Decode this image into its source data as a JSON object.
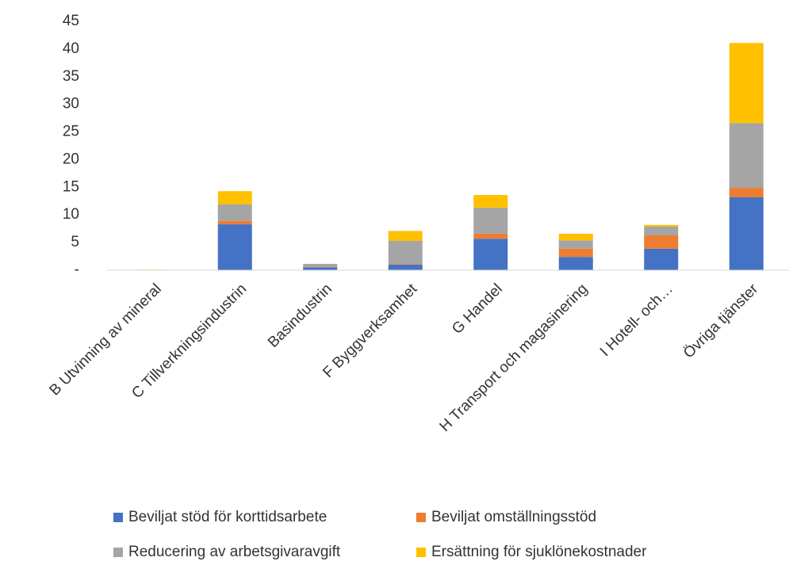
{
  "chart_data": {
    "type": "stacked_bar",
    "categories": [
      "B Utvinning av mineral",
      "C Tillverkningsindustrin",
      "Basindustrin",
      "F Byggverksamhet",
      "G Handel",
      "H Transport och magasinering",
      "I Hotell- och…",
      "Övriga tjänster"
    ],
    "series": [
      {
        "name": "Beviljat stöd för korttidsarbete",
        "color": "#4472c4",
        "values": [
          0,
          8.3,
          0.5,
          1.0,
          5.7,
          2.4,
          3.9,
          13.2
        ]
      },
      {
        "name": "Beviljat omställningsstöd",
        "color": "#ed7d31",
        "values": [
          0,
          0.6,
          0.05,
          0.1,
          0.9,
          1.5,
          2.4,
          1.7
        ]
      },
      {
        "name": "Reducering av arbetsgivaravgift",
        "color": "#a5a5a5",
        "values": [
          0.05,
          3.0,
          0.6,
          4.2,
          4.7,
          1.5,
          1.6,
          11.7
        ]
      },
      {
        "name": "Ersättning för sjuklönekostnader",
        "color": "#ffc000",
        "values": [
          0.05,
          2.4,
          0,
          1.8,
          2.3,
          1.2,
          0.3,
          14.5
        ]
      }
    ],
    "ylim": [
      0,
      45
    ],
    "yticks": [
      {
        "value": 0,
        "label": "-"
      },
      5,
      10,
      15,
      20,
      25,
      30,
      35,
      40,
      45
    ],
    "grid": false
  }
}
